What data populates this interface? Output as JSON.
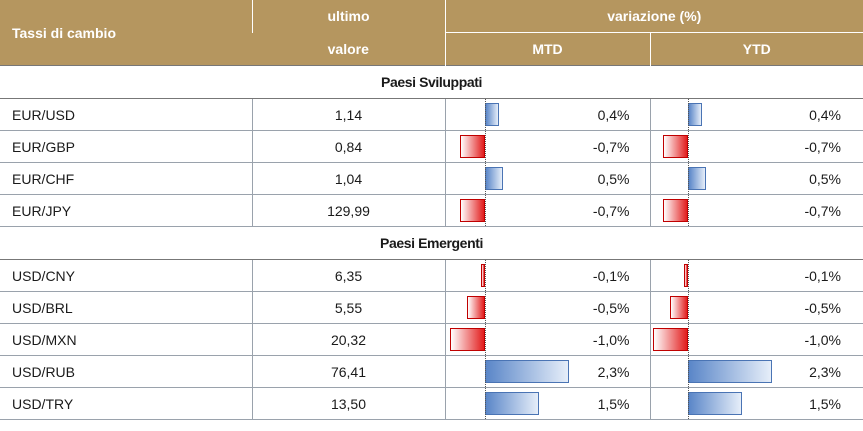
{
  "header": {
    "col1": "Tassi di cambio",
    "col2_line1": "ultimo",
    "col2_line2": "valore",
    "variation": "variazione (%)",
    "mtd": "MTD",
    "ytd": "YTD"
  },
  "sections": [
    {
      "title": "Paesi Sviluppati",
      "rows": [
        {
          "pair": "EUR/USD",
          "value": "1,14",
          "mtd": 0.4,
          "mtd_label": "0,4%",
          "ytd": 0.4,
          "ytd_label": "0,4%"
        },
        {
          "pair": "EUR/GBP",
          "value": "0,84",
          "mtd": -0.7,
          "mtd_label": "-0,7%",
          "ytd": -0.7,
          "ytd_label": "-0,7%"
        },
        {
          "pair": "EUR/CHF",
          "value": "1,04",
          "mtd": 0.5,
          "mtd_label": "0,5%",
          "ytd": 0.5,
          "ytd_label": "0,5%"
        },
        {
          "pair": "EUR/JPY",
          "value": "129,99",
          "mtd": -0.7,
          "mtd_label": "-0,7%",
          "ytd": -0.7,
          "ytd_label": "-0,7%"
        }
      ]
    },
    {
      "title": "Paesi Emergenti",
      "rows": [
        {
          "pair": "USD/CNY",
          "value": "6,35",
          "mtd": -0.1,
          "mtd_label": "-0,1%",
          "ytd": -0.1,
          "ytd_label": "-0,1%"
        },
        {
          "pair": "USD/BRL",
          "value": "5,55",
          "mtd": -0.5,
          "mtd_label": "-0,5%",
          "ytd": -0.5,
          "ytd_label": "-0,5%"
        },
        {
          "pair": "USD/MXN",
          "value": "20,32",
          "mtd": -1.0,
          "mtd_label": "-1,0%",
          "ytd": -1.0,
          "ytd_label": "-1,0%"
        },
        {
          "pair": "USD/RUB",
          "value": "76,41",
          "mtd": 2.3,
          "mtd_label": "2,3%",
          "ytd": 2.3,
          "ytd_label": "2,3%"
        },
        {
          "pair": "USD/TRY",
          "value": "13,50",
          "mtd": 1.5,
          "mtd_label": "1,5%",
          "ytd": 1.5,
          "ytd_label": "1,5%"
        }
      ]
    }
  ],
  "colors": {
    "header_bg": "#b5965f",
    "positive_bar": "#5a86c8",
    "negative_bar": "#e21c1c"
  }
}
